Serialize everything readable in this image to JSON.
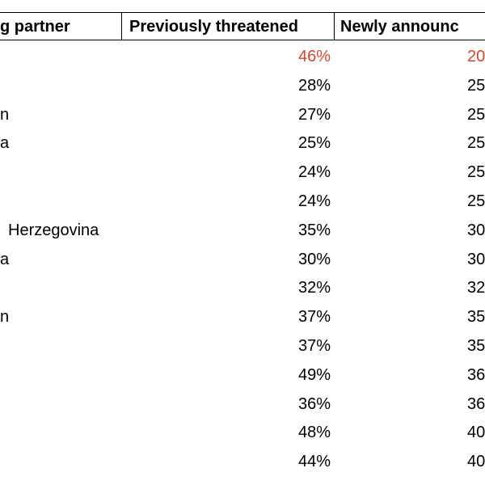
{
  "table": {
    "header": [
      "g partner",
      "Previously threatened",
      "Newly announc"
    ],
    "rows": [
      {
        "previous": "46%",
        "new": "20",
        "color": "#d8432d"
      },
      {
        "previous": "28%",
        "new": "25"
      },
      {
        "label": "n",
        "previous": "27%",
        "new": "25"
      },
      {
        "label": "a",
        "previous": "25%",
        "new": "25"
      },
      {
        "previous": "24%",
        "new": "25"
      },
      {
        "previous": "24%",
        "new": "25"
      },
      {
        "label": "Herzegovina",
        "previous": "35%",
        "new": "30"
      },
      {
        "label": "a",
        "previous": "30%",
        "new": "30"
      },
      {
        "previous": "32%",
        "new": "32"
      },
      {
        "label": "n",
        "previous": "37%",
        "new": "35"
      },
      {
        "previous": "37%",
        "new": "35"
      },
      {
        "previous": "49%",
        "new": "36"
      },
      {
        "previous": "36%",
        "new": "36"
      },
      {
        "previous": "48%",
        "new": "40"
      },
      {
        "previous": "44%",
        "new": "40"
      }
    ]
  }
}
